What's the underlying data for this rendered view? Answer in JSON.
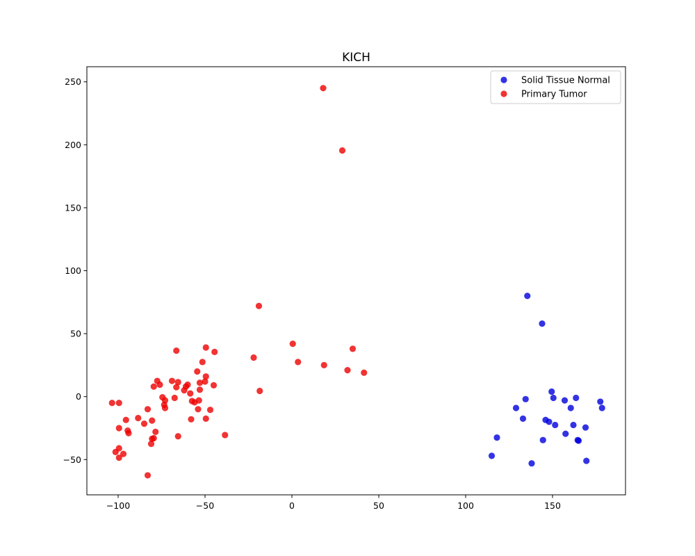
{
  "chart_data": {
    "type": "scatter",
    "title": "KICH",
    "xlabel": "",
    "ylabel": "",
    "xlim": [
      -118,
      192
    ],
    "ylim": [
      -78,
      262
    ],
    "xticks": [
      -100,
      -50,
      0,
      50,
      100,
      150
    ],
    "yticks": [
      -50,
      0,
      50,
      100,
      150,
      200,
      250
    ],
    "grid": false,
    "legend_position": "top-right",
    "series": [
      {
        "name": "Solid Tissue Normal",
        "color": "#0000dd",
        "points": [
          [
            135.5,
            80
          ],
          [
            144,
            58
          ],
          [
            149.5,
            4
          ],
          [
            150.5,
            -1
          ],
          [
            163.5,
            -1
          ],
          [
            157,
            -3
          ],
          [
            177.5,
            -4
          ],
          [
            134.5,
            -2
          ],
          [
            129,
            -9
          ],
          [
            160.5,
            -9
          ],
          [
            178.5,
            -9
          ],
          [
            133,
            -17.5
          ],
          [
            146,
            -18.5
          ],
          [
            148,
            -20
          ],
          [
            151.5,
            -22.5
          ],
          [
            162,
            -22.5
          ],
          [
            169,
            -24.5
          ],
          [
            157.5,
            -29.5
          ],
          [
            118,
            -32.5
          ],
          [
            144.5,
            -34.5
          ],
          [
            164.5,
            -34.5
          ],
          [
            165,
            -35
          ],
          [
            115,
            -47
          ],
          [
            138,
            -53
          ],
          [
            169.5,
            -51
          ]
        ]
      },
      {
        "name": "Primary Tumor",
        "color": "#ee0000",
        "points": [
          [
            18,
            245
          ],
          [
            29,
            195.5
          ],
          [
            -19,
            72
          ],
          [
            0.5,
            42
          ],
          [
            35,
            38
          ],
          [
            -22,
            31
          ],
          [
            3.5,
            27.5
          ],
          [
            18.5,
            25
          ],
          [
            32,
            21
          ],
          [
            41.5,
            19
          ],
          [
            -18.5,
            4.5
          ],
          [
            -49.5,
            39
          ],
          [
            -44.5,
            35.5
          ],
          [
            -66.5,
            36.5
          ],
          [
            -51.5,
            27.5
          ],
          [
            -54.5,
            20
          ],
          [
            -49.5,
            16
          ],
          [
            -50,
            12
          ],
          [
            -53,
            11
          ],
          [
            -45,
            9
          ],
          [
            -69,
            12.5
          ],
          [
            -65.5,
            11.5
          ],
          [
            -77.5,
            12.5
          ],
          [
            -76,
            9.5
          ],
          [
            -79.5,
            8
          ],
          [
            -66.5,
            7.5
          ],
          [
            -61,
            8
          ],
          [
            -60,
            9.5
          ],
          [
            -62,
            5
          ],
          [
            -53,
            5.5
          ],
          [
            -58.5,
            2.5
          ],
          [
            -74.5,
            -0.5
          ],
          [
            -67.5,
            -1
          ],
          [
            -73,
            -3
          ],
          [
            -57.5,
            -3.5
          ],
          [
            -56,
            -4.5
          ],
          [
            -53.5,
            -3
          ],
          [
            -73.5,
            -6.5
          ],
          [
            -73,
            -9
          ],
          [
            -54,
            -10
          ],
          [
            -47,
            -10.5
          ],
          [
            -103.5,
            -5
          ],
          [
            -99.5,
            -5
          ],
          [
            -83,
            -10
          ],
          [
            -95.5,
            -18.5
          ],
          [
            -88.5,
            -17
          ],
          [
            -80.5,
            -19
          ],
          [
            -85,
            -21.5
          ],
          [
            -58,
            -18
          ],
          [
            -49.5,
            -17.5
          ],
          [
            -99.5,
            -25
          ],
          [
            -94.5,
            -27
          ],
          [
            -94,
            -29
          ],
          [
            -78.5,
            -28
          ],
          [
            -38.5,
            -30.5
          ],
          [
            -65.5,
            -31.5
          ],
          [
            -79.5,
            -33
          ],
          [
            -80.5,
            -33.5
          ],
          [
            -81,
            -37.5
          ],
          [
            -99.5,
            -41
          ],
          [
            -101.5,
            -44
          ],
          [
            -97,
            -45.5
          ],
          [
            -99.5,
            -48.5
          ],
          [
            -83,
            -62.5
          ]
        ]
      }
    ]
  }
}
